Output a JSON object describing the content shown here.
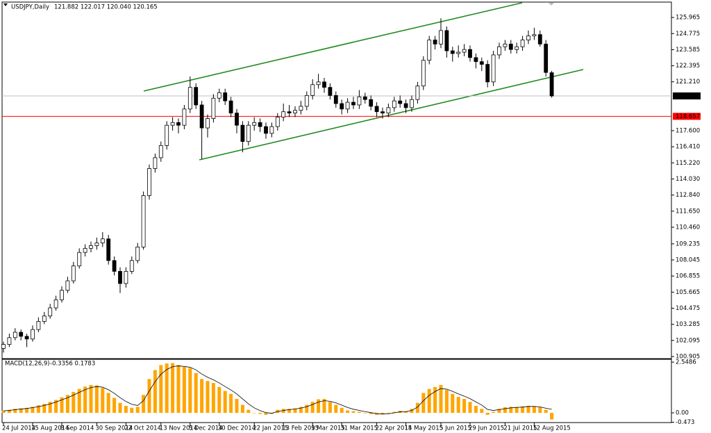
{
  "chart_data": [
    {
      "type": "candlestick",
      "title": "USDJPY,Daily",
      "info": "121.882 122.017 120.040 120.165",
      "categories": [
        "24 Jul 2014",
        null,
        null,
        null,
        null,
        "15 Aug 2014",
        null,
        null,
        null,
        null,
        "8 Sep 2014",
        null,
        null,
        null,
        null,
        null,
        "30 Sep 2014",
        null,
        null,
        null,
        null,
        "22 Oct 2014",
        null,
        null,
        null,
        null,
        null,
        "13 Nov 2014",
        null,
        null,
        null,
        null,
        "5 Dec 2014",
        null,
        null,
        null,
        null,
        "30 Dec 2014",
        null,
        null,
        null,
        null,
        null,
        "22 Jan 2015",
        null,
        null,
        null,
        null,
        "13 Feb 2015",
        null,
        null,
        null,
        null,
        "9 Mar 2015",
        null,
        null,
        null,
        null,
        "31 Mar 2015",
        null,
        null,
        null,
        null,
        null,
        "22 Apr 2015",
        null,
        null,
        null,
        null,
        "14 May 2015",
        null,
        null,
        null,
        null,
        null,
        "5 Jun 2015",
        null,
        null,
        null,
        null,
        "29 Jun 2015",
        null,
        null,
        null,
        null,
        null,
        "21 Jul 2015",
        null,
        null,
        null,
        null,
        "12 Aug 2015",
        null,
        null,
        null
      ],
      "ohlc": [
        [
          101.5,
          102.0,
          101.2,
          101.8
        ],
        [
          101.8,
          102.6,
          101.6,
          102.3
        ],
        [
          102.3,
          103.0,
          102.1,
          102.7
        ],
        [
          102.7,
          102.9,
          102.1,
          102.4
        ],
        [
          102.4,
          102.6,
          101.6,
          102.2
        ],
        [
          102.2,
          103.2,
          102.0,
          102.9
        ],
        [
          102.9,
          103.8,
          102.7,
          103.5
        ],
        [
          103.5,
          104.2,
          103.3,
          103.9
        ],
        [
          103.9,
          104.8,
          103.7,
          104.5
        ],
        [
          104.5,
          105.4,
          104.3,
          105.1
        ],
        [
          105.1,
          106.1,
          104.9,
          105.8
        ],
        [
          105.8,
          106.8,
          105.6,
          106.5
        ],
        [
          106.5,
          107.9,
          106.3,
          107.6
        ],
        [
          107.6,
          108.9,
          107.4,
          108.6
        ],
        [
          108.6,
          109.2,
          108.3,
          108.9
        ],
        [
          108.9,
          109.4,
          108.6,
          109.1
        ],
        [
          109.1,
          109.7,
          108.8,
          109.3
        ],
        [
          109.3,
          110.1,
          109.0,
          109.6
        ],
        [
          109.6,
          109.9,
          107.7,
          108.0
        ],
        [
          108.0,
          108.3,
          106.9,
          107.2
        ],
        [
          107.2,
          107.5,
          105.6,
          106.3
        ],
        [
          106.3,
          107.5,
          106.0,
          107.2
        ],
        [
          107.2,
          108.3,
          107.0,
          108.0
        ],
        [
          108.0,
          109.3,
          107.8,
          109.0
        ],
        [
          109.0,
          113.1,
          108.8,
          112.8
        ],
        [
          112.8,
          115.1,
          112.5,
          114.8
        ],
        [
          114.8,
          115.9,
          114.5,
          115.6
        ],
        [
          115.6,
          116.8,
          115.3,
          116.5
        ],
        [
          116.5,
          118.3,
          116.2,
          118.0
        ],
        [
          118.0,
          118.6,
          117.6,
          118.2
        ],
        [
          118.2,
          118.5,
          117.4,
          118.0
        ],
        [
          118.0,
          119.5,
          117.7,
          119.2
        ],
        [
          119.2,
          121.6,
          118.9,
          120.8
        ],
        [
          120.8,
          121.1,
          119.2,
          119.5
        ],
        [
          119.5,
          119.8,
          115.5,
          117.8
        ],
        [
          117.8,
          118.8,
          117.1,
          118.5
        ],
        [
          118.5,
          120.3,
          118.2,
          120.0
        ],
        [
          120.0,
          120.7,
          119.7,
          120.4
        ],
        [
          120.4,
          120.7,
          119.5,
          119.8
        ],
        [
          119.8,
          120.1,
          118.6,
          118.9
        ],
        [
          118.9,
          119.2,
          117.4,
          118.0
        ],
        [
          118.0,
          118.3,
          116.0,
          116.8
        ],
        [
          116.8,
          118.3,
          116.5,
          118.0
        ],
        [
          118.0,
          118.6,
          117.6,
          118.2
        ],
        [
          118.2,
          118.5,
          117.5,
          117.9
        ],
        [
          117.9,
          118.2,
          117.0,
          117.4
        ],
        [
          117.4,
          118.2,
          117.1,
          117.9
        ],
        [
          117.9,
          118.9,
          117.6,
          118.6
        ],
        [
          118.6,
          119.6,
          118.3,
          119.0
        ],
        [
          119.0,
          119.5,
          118.6,
          118.9
        ],
        [
          118.9,
          119.4,
          118.6,
          119.1
        ],
        [
          119.1,
          119.8,
          118.8,
          119.4
        ],
        [
          119.4,
          120.5,
          119.1,
          120.2
        ],
        [
          120.2,
          121.4,
          119.9,
          121.0
        ],
        [
          121.0,
          121.8,
          120.7,
          121.2
        ],
        [
          121.2,
          121.5,
          120.4,
          120.8
        ],
        [
          120.8,
          121.1,
          119.9,
          120.2
        ],
        [
          120.2,
          120.5,
          119.3,
          119.6
        ],
        [
          119.6,
          119.9,
          118.8,
          119.2
        ],
        [
          119.2,
          120.0,
          118.9,
          119.7
        ],
        [
          119.7,
          120.1,
          119.2,
          119.5
        ],
        [
          119.5,
          120.6,
          119.2,
          120.1
        ],
        [
          120.1,
          120.4,
          119.6,
          119.9
        ],
        [
          119.9,
          120.2,
          119.1,
          119.4
        ],
        [
          119.4,
          119.7,
          118.6,
          119.0
        ],
        [
          119.0,
          119.3,
          118.5,
          118.9
        ],
        [
          118.9,
          119.6,
          118.6,
          119.3
        ],
        [
          119.3,
          120.1,
          119.0,
          119.8
        ],
        [
          119.8,
          120.2,
          119.3,
          119.6
        ],
        [
          119.6,
          119.9,
          118.9,
          119.3
        ],
        [
          119.3,
          120.2,
          119.0,
          119.9
        ],
        [
          119.9,
          121.2,
          119.6,
          120.9
        ],
        [
          120.9,
          123.1,
          120.6,
          122.8
        ],
        [
          122.8,
          124.6,
          122.5,
          124.3
        ],
        [
          124.3,
          124.6,
          123.6,
          124.0
        ],
        [
          124.0,
          125.9,
          123.7,
          125.0
        ],
        [
          125.0,
          125.3,
          123.0,
          123.5
        ],
        [
          123.5,
          123.8,
          122.7,
          123.3
        ],
        [
          123.3,
          123.9,
          123.0,
          123.4
        ],
        [
          123.4,
          124.0,
          123.1,
          123.6
        ],
        [
          123.6,
          123.9,
          122.7,
          123.0
        ],
        [
          123.0,
          123.3,
          122.2,
          122.7
        ],
        [
          122.7,
          123.0,
          122.0,
          122.5
        ],
        [
          122.5,
          122.8,
          120.8,
          121.2
        ],
        [
          121.2,
          123.5,
          120.9,
          123.2
        ],
        [
          123.2,
          124.1,
          122.9,
          123.8
        ],
        [
          123.8,
          124.3,
          123.5,
          124.0
        ],
        [
          124.0,
          124.3,
          123.3,
          123.6
        ],
        [
          123.6,
          124.1,
          123.3,
          123.8
        ],
        [
          123.8,
          124.6,
          123.5,
          124.3
        ],
        [
          124.3,
          125.0,
          124.0,
          124.6
        ],
        [
          124.6,
          125.2,
          124.3,
          124.7
        ],
        [
          124.7,
          125.0,
          123.8,
          124.0
        ],
        [
          124.0,
          124.3,
          121.6,
          121.9
        ],
        [
          121.882,
          122.017,
          120.04,
          120.165
        ]
      ],
      "up_color": "#ffffff",
      "down_color": "#000000",
      "ylim": [
        100.75,
        127.05
      ],
      "yticks": [
        125.965,
        124.775,
        123.585,
        122.395,
        {
          "value": 121.21,
          "label": "121.210"
        },
        {
          "value": 117.6,
          "label": "117.600"
        },
        {
          "value": 116.41,
          "label": "116.410"
        },
        {
          "value": 115.22,
          "label": "115.220"
        },
        {
          "value": 114.03,
          "label": "114.030"
        },
        {
          "value": 112.84,
          "label": "112.840"
        },
        {
          "value": 111.65,
          "label": "111.650"
        },
        {
          "value": 110.46,
          "label": "110.460"
        },
        109.235,
        108.045,
        106.855,
        105.665,
        104.475,
        103.285,
        102.095,
        100.905
      ],
      "hlines": [
        {
          "value": 118.657,
          "color": "#ff0000"
        }
      ]
    },
    {
      "type": "bar",
      "title": "MACD(12,26,9)",
      "info": "-0.3356 0.1783",
      "color": "#ffa500",
      "signal_color": "#000000",
      "values": [
        0.1,
        0.15,
        0.2,
        0.22,
        0.25,
        0.3,
        0.38,
        0.45,
        0.55,
        0.65,
        0.78,
        0.9,
        1.05,
        1.2,
        1.32,
        1.4,
        1.38,
        1.25,
        1.0,
        0.75,
        0.5,
        0.35,
        0.25,
        0.3,
        0.9,
        1.7,
        2.15,
        2.4,
        2.48,
        2.5,
        2.4,
        2.3,
        2.25,
        2.0,
        1.7,
        1.6,
        1.5,
        1.3,
        1.1,
        0.95,
        0.7,
        0.4,
        0.15,
        0.0,
        -0.05,
        -0.1,
        -0.05,
        0.15,
        0.2,
        0.2,
        0.22,
        0.3,
        0.4,
        0.55,
        0.68,
        0.7,
        0.55,
        0.4,
        0.25,
        0.12,
        0.08,
        0.05,
        -0.02,
        -0.06,
        -0.1,
        -0.08,
        -0.04,
        0.05,
        0.1,
        0.08,
        0.2,
        0.5,
        1.0,
        1.2,
        1.3,
        1.4,
        1.15,
        0.95,
        0.8,
        0.7,
        0.55,
        0.35,
        0.2,
        -0.1,
        0.05,
        0.2,
        0.28,
        0.3,
        0.3,
        0.32,
        0.35,
        0.33,
        0.28,
        0.15,
        -0.3356
      ],
      "signal": [
        0.1,
        0.12,
        0.16,
        0.19,
        0.22,
        0.26,
        0.31,
        0.37,
        0.45,
        0.54,
        0.65,
        0.76,
        0.89,
        1.03,
        1.16,
        1.27,
        1.32,
        1.29,
        1.16,
        0.98,
        0.76,
        0.57,
        0.43,
        0.37,
        0.61,
        1.1,
        1.57,
        1.94,
        2.18,
        2.32,
        2.36,
        2.33,
        2.29,
        2.16,
        1.95,
        1.79,
        1.66,
        1.5,
        1.32,
        1.15,
        0.95,
        0.7,
        0.45,
        0.25,
        0.11,
        0.01,
        -0.02,
        0.06,
        0.12,
        0.16,
        0.19,
        0.24,
        0.31,
        0.42,
        0.54,
        0.61,
        0.58,
        0.5,
        0.39,
        0.27,
        0.18,
        0.12,
        0.06,
        0.01,
        -0.04,
        -0.06,
        -0.05,
        0.0,
        0.05,
        0.06,
        0.12,
        0.29,
        0.61,
        0.88,
        1.07,
        1.22,
        1.19,
        1.08,
        0.95,
        0.84,
        0.71,
        0.55,
        0.39,
        0.17,
        0.12,
        0.16,
        0.21,
        0.25,
        0.27,
        0.29,
        0.32,
        0.32,
        0.3,
        0.23,
        0.1783
      ],
      "ylim": [
        -0.49,
        2.69
      ],
      "yticks": [
        2.5486,
        {
          "value": 0,
          "label": "0.00"
        },
        -0.473
      ]
    }
  ]
}
